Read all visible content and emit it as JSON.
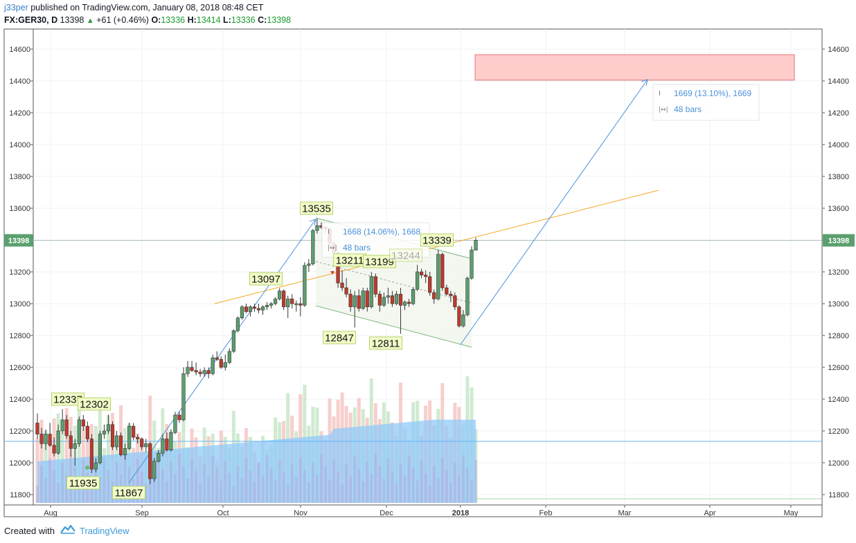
{
  "header": {
    "author": "j33per",
    "published": "published on TradingView.com, January 08, 2018 08:48 CET"
  },
  "ticker": {
    "symbol": "FX:GER30, D",
    "last": "13398",
    "change": "+61 (+0.46%)",
    "o_label": "O:",
    "o_val": "13336",
    "h_label": "H:",
    "h_val": "13414",
    "l_label": "L:",
    "l_val": "13336",
    "c_label": "C:",
    "c_val": "13398"
  },
  "footer": {
    "created_with": "Created with",
    "brand": "TradingView"
  },
  "colors": {
    "up": "#5b9f6f",
    "down": "#c0392b",
    "last_price_tag": "#5b9f6f",
    "target_zone": "#ffcccc",
    "projection": "#4a90d9",
    "trendline": "#f5a623",
    "channel": "#7fb77e",
    "volume": "#90caf9"
  },
  "chart_data": {
    "type": "candlestick",
    "title": "",
    "ylim": [
      11750,
      14700
    ],
    "y_ticks": [
      11800,
      12000,
      12200,
      12400,
      12600,
      12800,
      13000,
      13200,
      13400,
      13600,
      13800,
      14000,
      14200,
      14400,
      14600
    ],
    "x_ticks": [
      "Aug",
      "Sep",
      "Oct",
      "Nov",
      "Dec",
      "2018",
      "Feb",
      "Mar",
      "Apr",
      "May"
    ],
    "last_price": 13398,
    "last_price_label": "13398",
    "pivot_labels": [
      {
        "text": "12337",
        "value": 12337
      },
      {
        "text": "12302",
        "value": 12302
      },
      {
        "text": "11935",
        "value": 11935
      },
      {
        "text": "11867",
        "value": 11867
      },
      {
        "text": "13097",
        "value": 13097
      },
      {
        "text": "13535",
        "value": 13535
      },
      {
        "text": "13211",
        "value": 13211
      },
      {
        "text": "13199",
        "value": 13199
      },
      {
        "text": "13244",
        "value": 13244
      },
      {
        "text": "13339",
        "value": 13339
      },
      {
        "text": "12847",
        "value": 12847
      },
      {
        "text": "12811",
        "value": 12811
      }
    ],
    "measure_1": {
      "range": "1668 (14.06%), 1668",
      "bars": "48 bars"
    },
    "measure_2": {
      "range": "1669 (13.10%), 1669",
      "bars": "48 bars"
    },
    "target_zone": {
      "low": 14405,
      "high": 14565
    },
    "candles": [
      [
        12250,
        12310,
        12150,
        12180
      ],
      [
        12180,
        12220,
        12090,
        12120
      ],
      [
        12120,
        12210,
        12080,
        12180
      ],
      [
        12180,
        12250,
        12100,
        12110
      ],
      [
        12110,
        12160,
        12040,
        12060
      ],
      [
        12060,
        12240,
        12050,
        12200
      ],
      [
        12200,
        12337,
        12180,
        12270
      ],
      [
        12270,
        12300,
        12150,
        12170
      ],
      [
        12170,
        12200,
        12040,
        12090
      ],
      [
        12090,
        12150,
        11980,
        12120
      ],
      [
        12120,
        12290,
        12100,
        12270
      ],
      [
        12270,
        12300,
        12200,
        12230
      ],
      [
        12230,
        12260,
        12130,
        12150
      ],
      [
        12150,
        12180,
        11935,
        11960
      ],
      [
        11960,
        12030,
        11940,
        12000
      ],
      [
        12000,
        12200,
        11990,
        12180
      ],
      [
        12180,
        12240,
        12150,
        12200
      ],
      [
        12200,
        12302,
        12180,
        12240
      ],
      [
        12240,
        12260,
        12080,
        12100
      ],
      [
        12100,
        12200,
        12080,
        12170
      ],
      [
        12170,
        12190,
        12040,
        12050
      ],
      [
        12050,
        12120,
        12020,
        12090
      ],
      [
        12090,
        12250,
        12080,
        12230
      ],
      [
        12230,
        12250,
        12140,
        12160
      ],
      [
        12160,
        12180,
        12120,
        12150
      ],
      [
        12150,
        12160,
        12080,
        12100
      ],
      [
        12100,
        12150,
        12070,
        12120
      ],
      [
        12120,
        12130,
        11867,
        11900
      ],
      [
        11900,
        12030,
        11880,
        12010
      ],
      [
        12010,
        12080,
        12000,
        12060
      ],
      [
        12060,
        12180,
        12040,
        12150
      ],
      [
        12150,
        12190,
        12070,
        12080
      ],
      [
        12080,
        12210,
        12070,
        12190
      ],
      [
        12190,
        12320,
        12180,
        12300
      ],
      [
        12300,
        12320,
        12250,
        12270
      ],
      [
        12270,
        12600,
        12260,
        12560
      ],
      [
        12560,
        12640,
        12540,
        12600
      ],
      [
        12600,
        12640,
        12570,
        12580
      ],
      [
        12580,
        12630,
        12550,
        12570
      ],
      [
        12570,
        12590,
        12540,
        12560
      ],
      [
        12560,
        12600,
        12540,
        12580
      ],
      [
        12580,
        12600,
        12530,
        12560
      ],
      [
        12560,
        12680,
        12550,
        12660
      ],
      [
        12660,
        12700,
        12640,
        12650
      ],
      [
        12650,
        12670,
        12590,
        12600
      ],
      [
        12600,
        12680,
        12580,
        12630
      ],
      [
        12630,
        12720,
        12620,
        12700
      ],
      [
        12700,
        12840,
        12690,
        12830
      ],
      [
        12830,
        12920,
        12820,
        12910
      ],
      [
        12910,
        12990,
        12900,
        12980
      ],
      [
        12980,
        13000,
        12940,
        12950
      ],
      [
        12950,
        12990,
        12920,
        12980
      ],
      [
        12980,
        13000,
        12950,
        12970
      ],
      [
        12970,
        13000,
        12940,
        12960
      ],
      [
        12960,
        12990,
        12930,
        12980
      ],
      [
        12980,
        13010,
        12960,
        12990
      ],
      [
        12990,
        13010,
        12970,
        13000
      ],
      [
        13000,
        13040,
        12990,
        13030
      ],
      [
        13030,
        13097,
        13020,
        13080
      ],
      [
        13080,
        13090,
        12960,
        12980
      ],
      [
        12980,
        13050,
        12910,
        13030
      ],
      [
        13030,
        13060,
        12970,
        13000
      ],
      [
        13000,
        13020,
        12950,
        13000
      ],
      [
        13000,
        13040,
        12920,
        12990
      ],
      [
        12990,
        13260,
        12980,
        13240
      ],
      [
        13240,
        13280,
        13200,
        13250
      ],
      [
        13250,
        13470,
        13240,
        13460
      ],
      [
        13460,
        13535,
        13440,
        13490
      ],
      [
        13490,
        13510,
        13470,
        13480
      ],
      [
        13480,
        13490,
        13440,
        13470
      ],
      [
        13470,
        13480,
        13360,
        13380
      ],
      [
        13380,
        13390,
        13300,
        13320
      ],
      [
        13320,
        13330,
        13100,
        13130
      ],
      [
        13130,
        13211,
        13080,
        13100
      ],
      [
        13100,
        13160,
        13040,
        13060
      ],
      [
        13060,
        13090,
        12950,
        12980
      ],
      [
        12980,
        13080,
        12850,
        13050
      ],
      [
        13050,
        13090,
        12950,
        12970
      ],
      [
        12970,
        13100,
        12960,
        13080
      ],
      [
        13080,
        13100,
        12950,
        12980
      ],
      [
        12980,
        13199,
        12970,
        13170
      ],
      [
        13170,
        13190,
        13040,
        13060
      ],
      [
        13060,
        13080,
        12950,
        12990
      ],
      [
        12990,
        13070,
        12980,
        13040
      ],
      [
        13040,
        13100,
        13000,
        13050
      ],
      [
        13050,
        13080,
        12980,
        13000
      ],
      [
        13000,
        13080,
        12990,
        13060
      ],
      [
        13060,
        13100,
        12811,
        12990
      ],
      [
        12990,
        13020,
        12960,
        13010
      ],
      [
        13010,
        13030,
        12980,
        13000
      ],
      [
        13000,
        13100,
        12990,
        13090
      ],
      [
        13090,
        13244,
        13080,
        13200
      ],
      [
        13200,
        13220,
        13160,
        13180
      ],
      [
        13180,
        13210,
        13130,
        13170
      ],
      [
        13170,
        13200,
        13050,
        13070
      ],
      [
        13070,
        13090,
        13000,
        13030
      ],
      [
        13030,
        13339,
        13020,
        13310
      ],
      [
        13310,
        13320,
        13080,
        13100
      ],
      [
        13100,
        13120,
        13050,
        13060
      ],
      [
        13060,
        13080,
        13010,
        13050
      ],
      [
        13050,
        13070,
        12960,
        12980
      ],
      [
        12980,
        12990,
        12850,
        12860
      ],
      [
        12860,
        12960,
        12850,
        12930
      ],
      [
        12930,
        13170,
        12920,
        13160
      ],
      [
        13160,
        13360,
        13150,
        13337
      ],
      [
        13336,
        13414,
        13336,
        13398
      ]
    ]
  }
}
